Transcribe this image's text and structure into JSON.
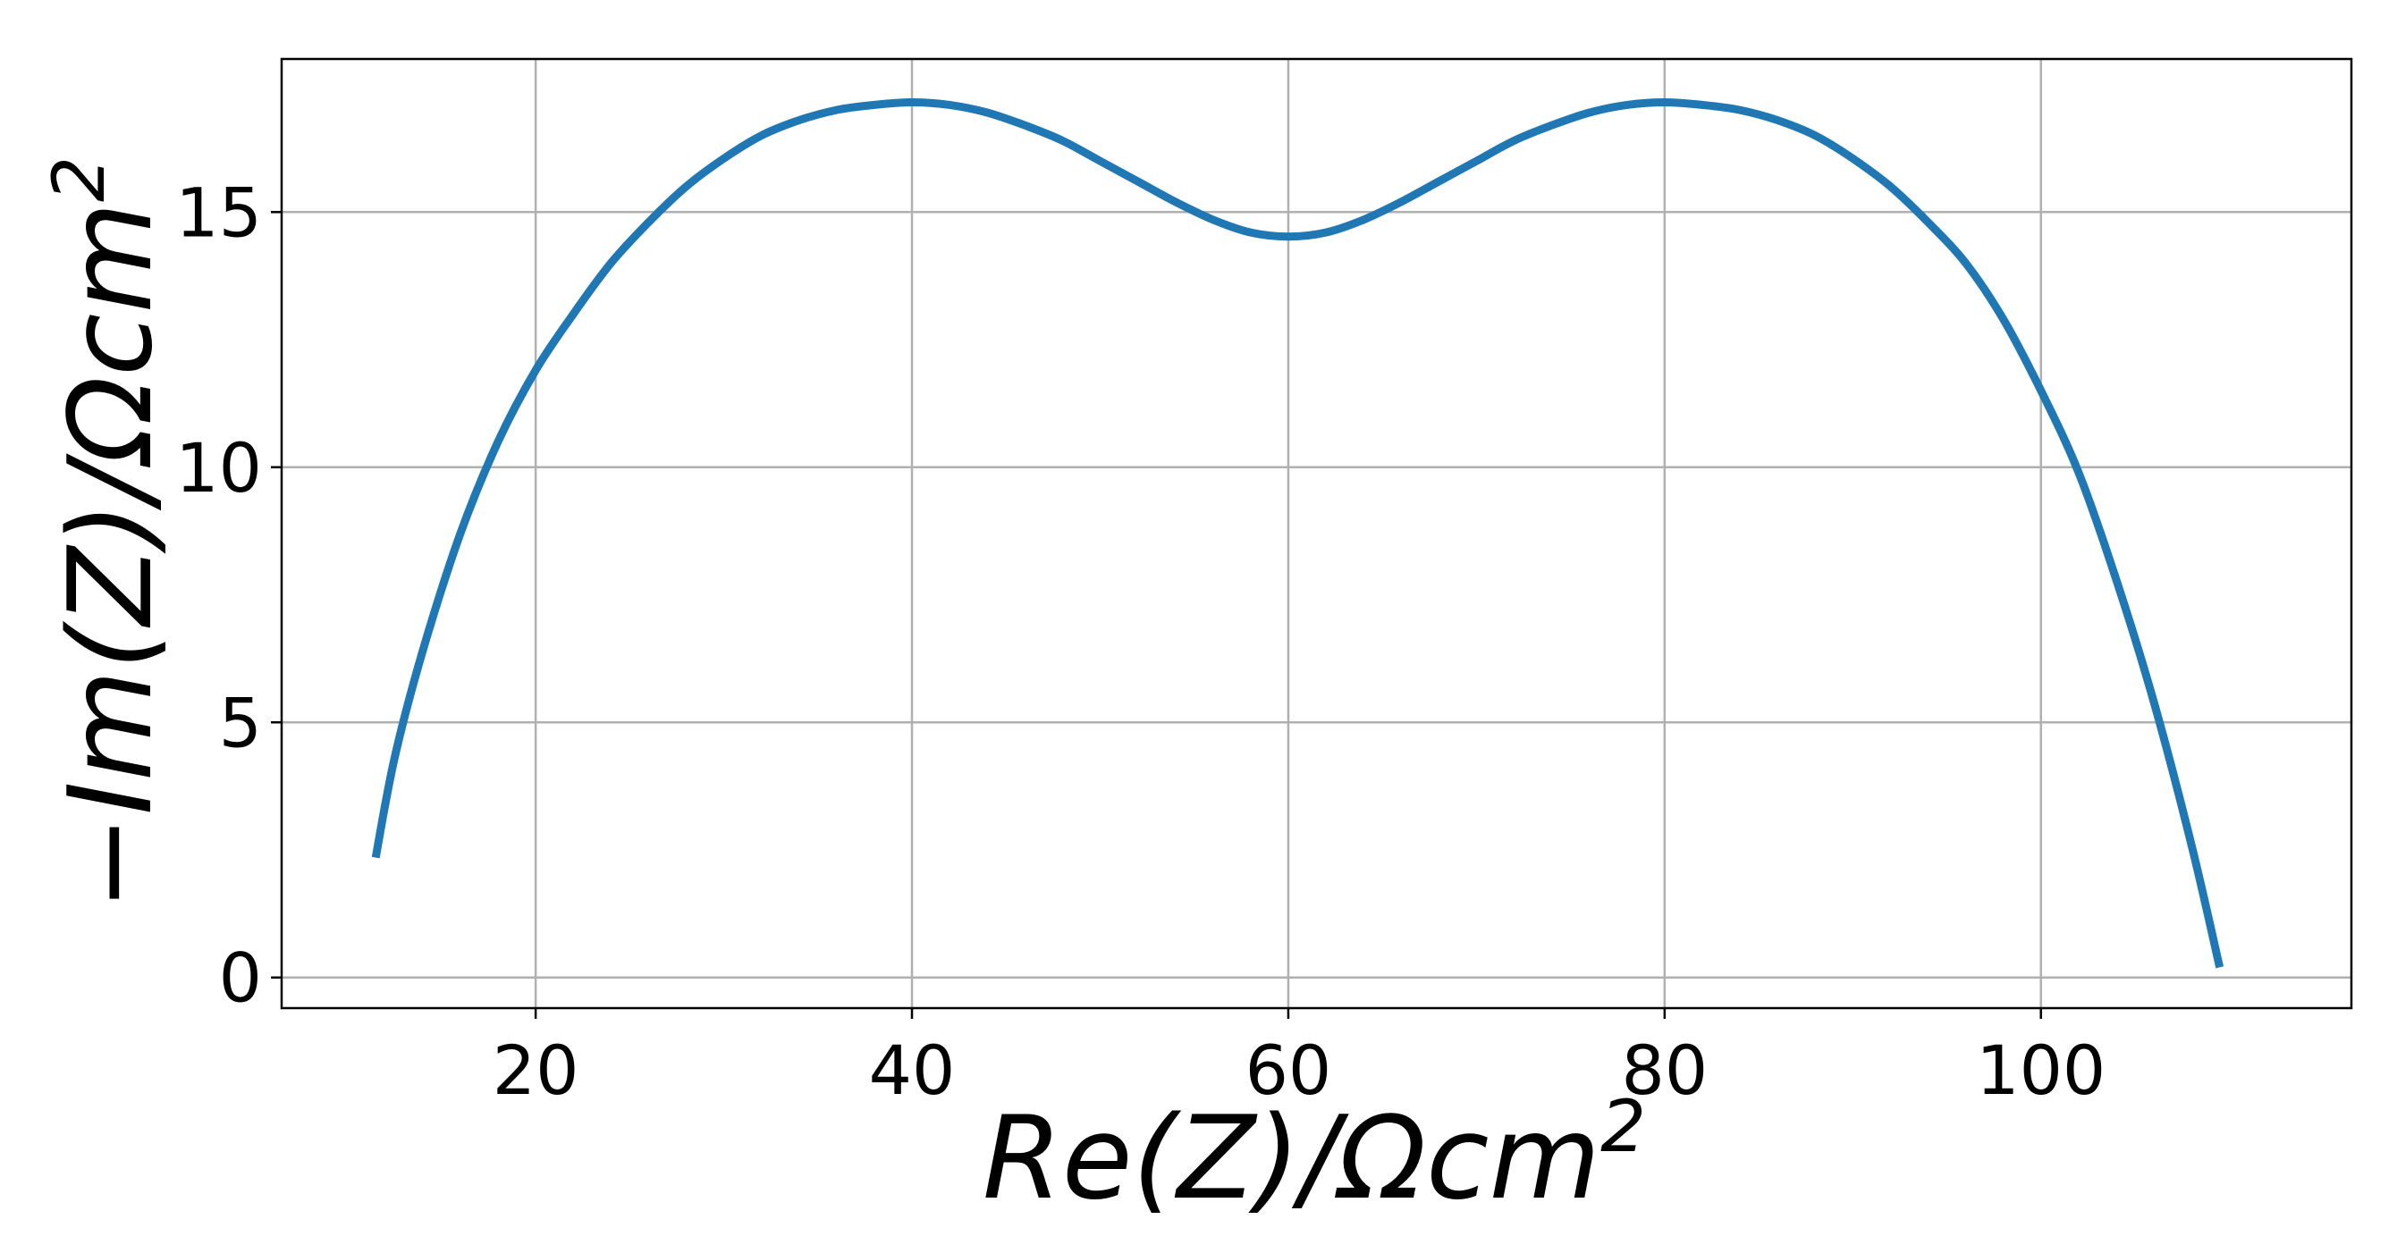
{
  "chart_data": {
    "type": "line",
    "xlabel": "Re(Z)/Ωcm",
    "xlabel_sup": "2",
    "ylabel": "−Im(Z)/Ωcm",
    "ylabel_sup": "2",
    "xlim": [
      6.5,
      116.5
    ],
    "ylim": [
      -0.6,
      18.0
    ],
    "x_ticks": [
      20,
      40,
      60,
      80,
      100
    ],
    "x_tick_labels": [
      "20",
      "40",
      "60",
      "80",
      "100"
    ],
    "y_ticks": [
      0,
      5,
      10,
      15
    ],
    "y_tick_labels": [
      "0",
      "5",
      "10",
      "15"
    ],
    "grid": true,
    "colors": {
      "series": "#1f77b4",
      "grid": "#b0b0b0",
      "axes": "#000000"
    },
    "series": [
      {
        "x": [
          11.5,
          12.5,
          14,
          16,
          18,
          20,
          22,
          24,
          26,
          28,
          30,
          32,
          34,
          36,
          38,
          40,
          42,
          44,
          46,
          48,
          50,
          52,
          54,
          56,
          58,
          60,
          62,
          64,
          66,
          68,
          70,
          72,
          74,
          76,
          78,
          80,
          82,
          84,
          86,
          88,
          90,
          92,
          94,
          96,
          98,
          100,
          102,
          104,
          106,
          108,
          109.5
        ],
        "y": [
          2.35,
          4.3,
          6.4,
          8.7,
          10.5,
          11.9,
          13.0,
          14.0,
          14.8,
          15.5,
          16.05,
          16.5,
          16.8,
          17.0,
          17.1,
          17.15,
          17.1,
          16.95,
          16.7,
          16.4,
          16.0,
          15.6,
          15.2,
          14.85,
          14.6,
          14.52,
          14.6,
          14.85,
          15.2,
          15.6,
          16.0,
          16.4,
          16.7,
          16.95,
          17.1,
          17.15,
          17.1,
          17.0,
          16.8,
          16.5,
          16.05,
          15.5,
          14.8,
          14.0,
          12.9,
          11.5,
          9.9,
          7.8,
          5.4,
          2.6,
          0.2
        ]
      }
    ]
  }
}
